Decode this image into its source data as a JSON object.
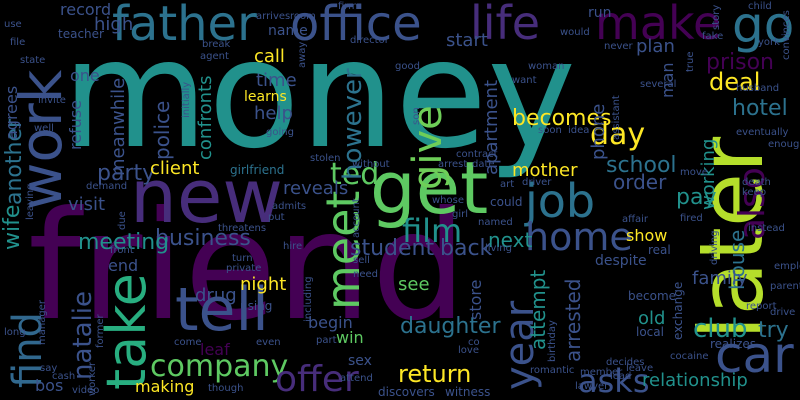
{
  "background": "#000000",
  "palette": [
    "#440154",
    "#3b528b",
    "#21918c",
    "#5ec962",
    "#fde725"
  ],
  "words": [
    {
      "text": "money",
      "color": "#21918c"
    },
    {
      "text": "friend",
      "color": "#440154"
    },
    {
      "text": "new",
      "color": "#472d7b"
    },
    {
      "text": "get",
      "color": "#5ec962"
    },
    {
      "text": "later",
      "color": "#b5de2b"
    },
    {
      "text": "work",
      "color": "#3b528b"
    },
    {
      "text": "father",
      "color": "#2c728e"
    },
    {
      "text": "office",
      "color": "#3b528b"
    },
    {
      "text": "life",
      "color": "#472d7b"
    },
    {
      "text": "make",
      "color": "#440154"
    },
    {
      "text": "go",
      "color": "#2c728e"
    },
    {
      "text": "job",
      "color": "#2c728e"
    },
    {
      "text": "home",
      "color": "#3b528b"
    },
    {
      "text": "give",
      "color": "#6ece58"
    },
    {
      "text": "meet",
      "color": "#5ec962"
    },
    {
      "text": "tell",
      "color": "#3b528b"
    },
    {
      "text": "take",
      "color": "#28ae80"
    },
    {
      "text": "car",
      "color": "#3b528b"
    },
    {
      "text": "find",
      "color": "#31688e"
    },
    {
      "text": "year",
      "color": "#3b528b"
    },
    {
      "text": "film",
      "color": "#21918c"
    },
    {
      "text": "company",
      "color": "#5ec962"
    },
    {
      "text": "offer",
      "color": "#472d7b"
    },
    {
      "text": "return",
      "color": "#fde725"
    },
    {
      "text": "asks",
      "color": "#3b528b"
    },
    {
      "text": "business",
      "color": "#3b528b"
    },
    {
      "text": "ted",
      "color": "#5ec962"
    },
    {
      "text": "day",
      "color": "#fde725"
    },
    {
      "text": "also",
      "color": "#440154"
    },
    {
      "text": "natalie",
      "color": "#3b528b"
    },
    {
      "text": "wife",
      "color": "#21918c"
    },
    {
      "text": "another",
      "color": "#2c728e"
    },
    {
      "text": "however",
      "color": "#2c728e"
    },
    {
      "text": "becomes",
      "color": "#fde725"
    },
    {
      "text": "school",
      "color": "#2c728e"
    },
    {
      "text": "mother",
      "color": "#fde725"
    },
    {
      "text": "back",
      "color": "#3b528b"
    },
    {
      "text": "next",
      "color": "#21918c"
    },
    {
      "text": "student",
      "color": "#3b528b"
    },
    {
      "text": "daughter",
      "color": "#2c728e"
    },
    {
      "text": "party",
      "color": "#3b528b"
    },
    {
      "text": "meeting",
      "color": "#21918c"
    },
    {
      "text": "arrested",
      "color": "#3b528b"
    },
    {
      "text": "attempt",
      "color": "#21918c"
    },
    {
      "text": "prison",
      "color": "#440154"
    },
    {
      "text": "hotel",
      "color": "#2c728e"
    },
    {
      "text": "deal",
      "color": "#fde725"
    },
    {
      "text": "relationship",
      "color": "#21918c"
    },
    {
      "text": "house",
      "color": "#2c728e"
    },
    {
      "text": "try",
      "color": "#2c728e"
    },
    {
      "text": "club",
      "color": "#21918c"
    },
    {
      "text": "family",
      "color": "#3b528b"
    },
    {
      "text": "pay",
      "color": "#21918c"
    },
    {
      "text": "working",
      "color": "#21918c"
    },
    {
      "text": "order",
      "color": "#3b528b"
    },
    {
      "text": "apartment",
      "color": "#3b528b"
    },
    {
      "text": "phone",
      "color": "#3b528b"
    },
    {
      "text": "plan",
      "color": "#3b528b"
    },
    {
      "text": "start",
      "color": "#3b528b"
    },
    {
      "text": "call",
      "color": "#fde725"
    },
    {
      "text": "help",
      "color": "#3b528b"
    },
    {
      "text": "time",
      "color": "#3b528b"
    },
    {
      "text": "learns",
      "color": "#fde725"
    },
    {
      "text": "police",
      "color": "#3b528b"
    },
    {
      "text": "confronts",
      "color": "#21918c"
    },
    {
      "text": "meanwhile",
      "color": "#3b528b"
    },
    {
      "text": "client",
      "color": "#fde725"
    },
    {
      "text": "reveals",
      "color": "#3b528b"
    },
    {
      "text": "girlfriend",
      "color": "#2c728e"
    },
    {
      "text": "high",
      "color": "#3b528b"
    },
    {
      "text": "record",
      "color": "#3b528b"
    },
    {
      "text": "one",
      "color": "#3b528b"
    },
    {
      "text": "agrees",
      "color": "#3b528b"
    },
    {
      "text": "refuse",
      "color": "#3b528b"
    },
    {
      "text": "visit",
      "color": "#3b528b"
    },
    {
      "text": "drug",
      "color": "#3b528b"
    },
    {
      "text": "night",
      "color": "#fde725"
    },
    {
      "text": "using",
      "color": "#3b528b"
    },
    {
      "text": "leaf",
      "color": "#440154"
    },
    {
      "text": "making",
      "color": "#fde725"
    },
    {
      "text": "win",
      "color": "#5ec962"
    },
    {
      "text": "begin",
      "color": "#3b528b"
    },
    {
      "text": "see",
      "color": "#5ec962"
    },
    {
      "text": "old",
      "color": "#21918c"
    },
    {
      "text": "show",
      "color": "#fde725"
    },
    {
      "text": "despite",
      "color": "#3b528b"
    },
    {
      "text": "man",
      "color": "#3b528b"
    },
    {
      "text": "become",
      "color": "#3b528b"
    },
    {
      "text": "store",
      "color": "#3b528b"
    },
    {
      "text": "name",
      "color": "#3b528b"
    },
    {
      "text": "end",
      "color": "#3b528b"
    },
    {
      "text": "bos",
      "color": "#3b528b"
    },
    {
      "text": "run",
      "color": "#3b528b"
    },
    {
      "text": "sex",
      "color": "#3b528b"
    },
    {
      "text": "teacher",
      "color": "#3b528b"
    },
    {
      "text": "agent",
      "color": "#3b528b"
    },
    {
      "text": "break",
      "color": "#3b528b"
    },
    {
      "text": "director",
      "color": "#3b528b"
    },
    {
      "text": "child",
      "color": "#3b528b"
    },
    {
      "text": "convinces",
      "color": "#3b528b"
    },
    {
      "text": "york",
      "color": "#3b528b"
    },
    {
      "text": "fake",
      "color": "#3b528b"
    },
    {
      "text": "story",
      "color": "#3b528b"
    },
    {
      "text": "never",
      "color": "#3b528b"
    },
    {
      "text": "would",
      "color": "#3b528b"
    },
    {
      "text": "woman",
      "color": "#3b528b"
    },
    {
      "text": "want",
      "color": "#3b528b"
    },
    {
      "text": "son",
      "color": "#3b528b"
    },
    {
      "text": "good",
      "color": "#3b528b"
    },
    {
      "text": "husband",
      "color": "#3b528b"
    },
    {
      "text": "eventually",
      "color": "#3b528b"
    },
    {
      "text": "enough",
      "color": "#3b528b"
    },
    {
      "text": "death",
      "color": "#3b528b"
    },
    {
      "text": "keep",
      "color": "#3b528b"
    },
    {
      "text": "instead",
      "color": "#3b528b"
    },
    {
      "text": "employee",
      "color": "#3b528b"
    },
    {
      "text": "parent",
      "color": "#3b528b"
    },
    {
      "text": "drive",
      "color": "#3b528b"
    },
    {
      "text": "report",
      "color": "#3b528b"
    },
    {
      "text": "realizes",
      "color": "#3b528b"
    },
    {
      "text": "cocaine",
      "color": "#3b528b"
    },
    {
      "text": "local",
      "color": "#3b528b"
    },
    {
      "text": "real",
      "color": "#3b528b"
    },
    {
      "text": "fired",
      "color": "#3b528b"
    },
    {
      "text": "exchange",
      "color": "#3b528b"
    },
    {
      "text": "driving",
      "color": "#3b528b"
    },
    {
      "text": "move",
      "color": "#3b528b"
    },
    {
      "text": "affair",
      "color": "#3b528b"
    },
    {
      "text": "leave",
      "color": "#3b528b"
    },
    {
      "text": "decides",
      "color": "#3b528b"
    },
    {
      "text": "lead",
      "color": "#3b528b"
    },
    {
      "text": "lawyer",
      "color": "#3b528b"
    },
    {
      "text": "member",
      "color": "#3b528b"
    },
    {
      "text": "romantic",
      "color": "#3b528b"
    },
    {
      "text": "birthday",
      "color": "#3b528b"
    },
    {
      "text": "love",
      "color": "#3b528b"
    },
    {
      "text": "co",
      "color": "#3b528b"
    },
    {
      "text": "witness",
      "color": "#3b528b"
    },
    {
      "text": "discovers",
      "color": "#3b528b"
    },
    {
      "text": "attend",
      "color": "#3b528b"
    },
    {
      "text": "worker",
      "color": "#3b528b"
    },
    {
      "text": "though",
      "color": "#3b528b"
    },
    {
      "text": "video",
      "color": "#3b528b"
    },
    {
      "text": "cash",
      "color": "#3b528b"
    },
    {
      "text": "say",
      "color": "#3b528b"
    },
    {
      "text": "long",
      "color": "#3b528b"
    },
    {
      "text": "manager",
      "color": "#3b528b"
    },
    {
      "text": "former",
      "color": "#3b528b"
    },
    {
      "text": "front",
      "color": "#3b528b"
    },
    {
      "text": "due",
      "color": "#3b528b"
    },
    {
      "text": "put",
      "color": "#3b528b"
    },
    {
      "text": "admits",
      "color": "#3b528b"
    },
    {
      "text": "stolen",
      "color": "#3b528b"
    },
    {
      "text": "without",
      "color": "#3b528b"
    },
    {
      "text": "account",
      "color": "#3b528b"
    },
    {
      "text": "could",
      "color": "#3b528b"
    },
    {
      "text": "whose",
      "color": "#3b528b"
    },
    {
      "text": "named",
      "color": "#3b528b"
    },
    {
      "text": "girl",
      "color": "#3b528b"
    },
    {
      "text": "living",
      "color": "#3b528b"
    },
    {
      "text": "contract",
      "color": "#3b528b"
    },
    {
      "text": "arrest",
      "color": "#3b528b"
    },
    {
      "text": "date",
      "color": "#3b528b"
    },
    {
      "text": "art",
      "color": "#3b528b"
    },
    {
      "text": "driver",
      "color": "#3b528b"
    },
    {
      "text": "including",
      "color": "#3b528b"
    },
    {
      "text": "need",
      "color": "#3b528b"
    },
    {
      "text": "sell",
      "color": "#3b528b"
    },
    {
      "text": "threatens",
      "color": "#3b528b"
    },
    {
      "text": "private",
      "color": "#3b528b"
    },
    {
      "text": "turn",
      "color": "#3b528b"
    },
    {
      "text": "hire",
      "color": "#3b528b"
    },
    {
      "text": "demand",
      "color": "#3b528b"
    },
    {
      "text": "leaving",
      "color": "#3b528b"
    },
    {
      "text": "invite",
      "color": "#3b528b"
    },
    {
      "text": "well",
      "color": "#3b528b"
    },
    {
      "text": "state",
      "color": "#3b528b"
    },
    {
      "text": "file",
      "color": "#3b528b"
    },
    {
      "text": "use",
      "color": "#3b528b"
    },
    {
      "text": "firm",
      "color": "#3b528b"
    },
    {
      "text": "arrives",
      "color": "#3b528b"
    },
    {
      "text": "room",
      "color": "#3b528b"
    },
    {
      "text": "away",
      "color": "#3b528b"
    },
    {
      "text": "initially",
      "color": "#3b528b"
    },
    {
      "text": "going",
      "color": "#3b528b"
    },
    {
      "text": "soon",
      "color": "#3b528b"
    },
    {
      "text": "idea",
      "color": "#3b528b"
    },
    {
      "text": "assistant",
      "color": "#3b528b"
    },
    {
      "text": "several",
      "color": "#3b528b"
    },
    {
      "text": "true",
      "color": "#3b528b"
    },
    {
      "text": "come",
      "color": "#3b528b"
    },
    {
      "text": "even",
      "color": "#3b528b"
    },
    {
      "text": "part",
      "color": "#3b528b"
    }
  ]
}
